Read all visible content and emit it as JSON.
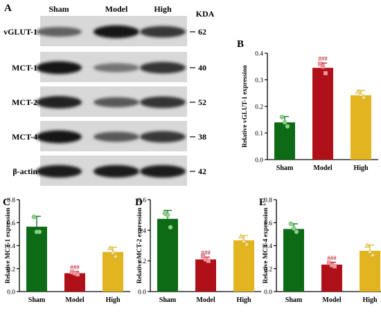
{
  "colors": {
    "Sham": "#0d6b16",
    "Model": "#b01018",
    "High": "#e2b41f",
    "Sham_point": "#8fd28f",
    "Model_point": "#f09aa0",
    "High_point": "#f5e49a",
    "axis": "#000000"
  },
  "blot": {
    "letter": "A",
    "groups": [
      "Sham",
      "Model",
      "High"
    ],
    "unit_label": "KDA",
    "rows": [
      {
        "label": "vGLUT-1",
        "kda": "62",
        "intensity": [
          0.55,
          0.95,
          0.78
        ]
      },
      {
        "label": "MCT-1",
        "kda": "40",
        "intensity": [
          0.95,
          0.45,
          0.8
        ]
      },
      {
        "label": "MCT-2",
        "kda": "52",
        "intensity": [
          0.9,
          0.6,
          0.8
        ]
      },
      {
        "label": "MCT-4",
        "kda": "38",
        "intensity": [
          0.95,
          0.6,
          0.78
        ]
      },
      {
        "label": "β-actin",
        "kda": "42",
        "intensity": [
          0.92,
          0.92,
          0.92
        ]
      }
    ]
  },
  "chart_data": [
    {
      "letter": "B",
      "type": "bar",
      "categories": [
        "Sham",
        "Model",
        "High"
      ],
      "values": [
        0.14,
        0.345,
        0.242
      ],
      "errors": [
        0.022,
        0.018,
        0.018
      ],
      "points": [
        [
          0.16,
          0.14,
          0.125
        ],
        [
          0.36,
          0.35,
          0.325
        ],
        [
          0.255,
          0.245,
          0.235
        ]
      ],
      "significance": [
        "",
        "###",
        ""
      ],
      "ylabel": "Relative vGLUT-1 expression",
      "ylim": [
        0,
        0.4
      ],
      "yticks": [
        "0.0",
        "0.1",
        "0.2",
        "0.3",
        "0.4"
      ]
    },
    {
      "letter": "C",
      "type": "bar",
      "categories": [
        "Sham",
        "Model",
        "High"
      ],
      "values": [
        0.565,
        0.16,
        0.345
      ],
      "errors": [
        0.09,
        0.015,
        0.04
      ],
      "points": [
        [
          0.65,
          0.52,
          0.52
        ],
        [
          0.17,
          0.16,
          0.15
        ],
        [
          0.38,
          0.34,
          0.31
        ]
      ],
      "significance": [
        "",
        "###",
        ""
      ],
      "ylabel": "Relative MCT-1 expression",
      "ylim": [
        0,
        0.8
      ],
      "yticks": [
        "0.0",
        "0.2",
        "0.4",
        "0.6",
        "0.8"
      ]
    },
    {
      "letter": "D",
      "type": "bar",
      "categories": [
        "Sham",
        "Model",
        "High"
      ],
      "values": [
        0.475,
        0.21,
        0.335
      ],
      "errors": [
        0.055,
        0.015,
        0.03
      ],
      "points": [
        [
          0.51,
          0.5,
          0.42
        ],
        [
          0.23,
          0.21,
          0.2
        ],
        [
          0.36,
          0.33,
          0.31
        ]
      ],
      "significance": [
        "",
        "###",
        ""
      ],
      "ylabel": "Relative MCT-2 expression",
      "ylim": [
        0,
        0.6
      ],
      "yticks": [
        "0.0",
        "0.2",
        "0.4",
        "0.6"
      ]
    },
    {
      "letter": "E",
      "type": "bar",
      "categories": [
        "Sham",
        "Model",
        "High"
      ],
      "values": [
        0.545,
        0.235,
        0.355
      ],
      "errors": [
        0.045,
        0.02,
        0.05
      ],
      "points": [
        [
          0.59,
          0.55,
          0.52
        ],
        [
          0.25,
          0.23,
          0.22
        ],
        [
          0.4,
          0.35,
          0.32
        ]
      ],
      "significance": [
        "",
        "###",
        ""
      ],
      "ylabel": "Relative MCT-4 expression",
      "ylim": [
        0,
        0.8
      ],
      "yticks": [
        "0.0",
        "0.2",
        "0.4",
        "0.6",
        "0.8"
      ]
    }
  ]
}
